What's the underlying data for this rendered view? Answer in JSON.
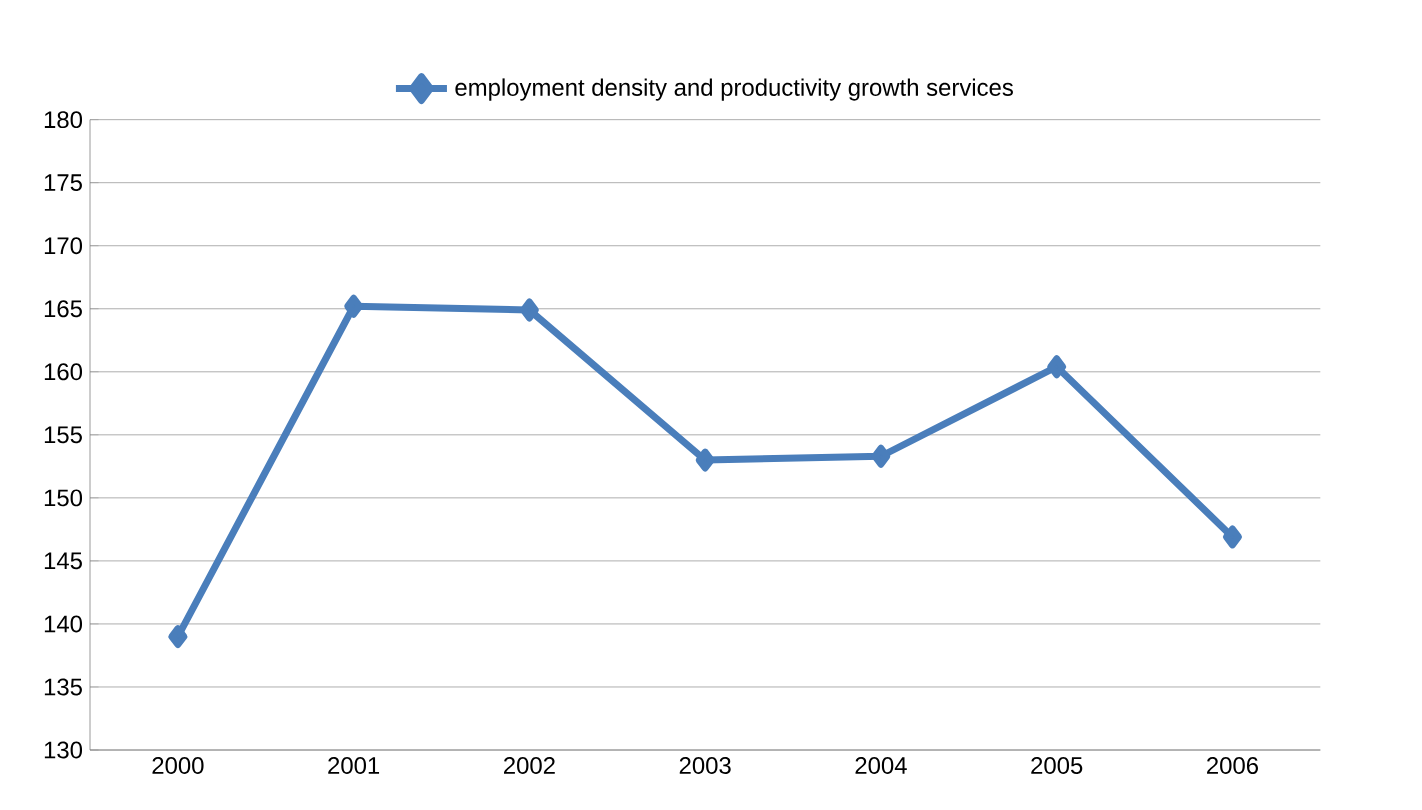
{
  "chart_data": {
    "type": "line",
    "categories": [
      "2000",
      "2001",
      "2002",
      "2003",
      "2004",
      "2005",
      "2006"
    ],
    "series": [
      {
        "name": "employment density and productivity growth services",
        "color": "#4a7ebb",
        "values": [
          139,
          165.2,
          164.9,
          153,
          153.3,
          160.4,
          146.9
        ]
      }
    ],
    "ylim": [
      130,
      180
    ],
    "yticks": [
      130,
      135,
      140,
      145,
      150,
      155,
      160,
      165,
      170,
      175,
      180
    ],
    "grid": "y",
    "legend": "top",
    "marker": "diamond",
    "line_style": "solid"
  }
}
